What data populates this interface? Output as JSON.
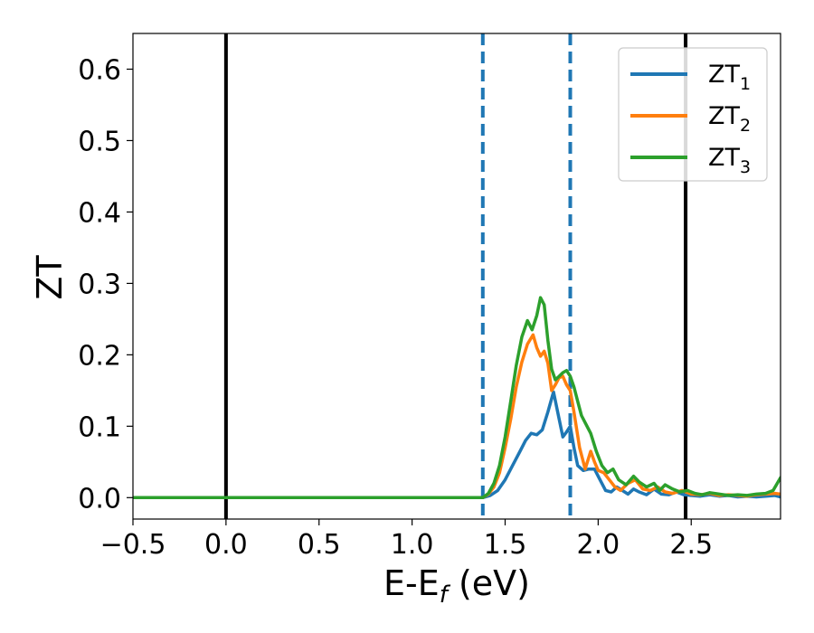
{
  "chart_data": {
    "type": "line",
    "title": "",
    "xlabel": {
      "main": "E-E",
      "sub": "f",
      "suffix": " (eV)"
    },
    "ylabel": "ZT",
    "xlim": [
      -0.5,
      2.98
    ],
    "ylim": [
      -0.03,
      0.65
    ],
    "xticks": [
      -0.5,
      0.0,
      0.5,
      1.0,
      1.5,
      2.0,
      2.5
    ],
    "xtick_labels": [
      "−0.5",
      "0.0",
      "0.5",
      "1.0",
      "1.5",
      "2.0",
      "2.5"
    ],
    "yticks": [
      0.0,
      0.1,
      0.2,
      0.3,
      0.4,
      0.5,
      0.6
    ],
    "ytick_labels": [
      "0.0",
      "0.1",
      "0.2",
      "0.3",
      "0.4",
      "0.5",
      "0.6"
    ],
    "grid": false,
    "legend_position": "top-right",
    "vertical_lines": [
      {
        "x": 0.0,
        "style": "solid",
        "color": "#000000"
      },
      {
        "x": 2.47,
        "style": "solid",
        "color": "#000000"
      },
      {
        "x": 1.38,
        "style": "dashed",
        "color": "#1f77b4"
      },
      {
        "x": 1.85,
        "style": "dashed",
        "color": "#1f77b4"
      }
    ],
    "series": [
      {
        "name": {
          "main": "ZT",
          "sub": "1"
        },
        "color": "#1f77b4",
        "x": [
          -0.5,
          0.0,
          0.5,
          1.0,
          1.3,
          1.38,
          1.42,
          1.46,
          1.5,
          1.54,
          1.58,
          1.61,
          1.64,
          1.67,
          1.7,
          1.73,
          1.76,
          1.79,
          1.81,
          1.83,
          1.85,
          1.87,
          1.89,
          1.92,
          1.95,
          1.98,
          2.01,
          2.04,
          2.07,
          2.1,
          2.13,
          2.16,
          2.19,
          2.22,
          2.26,
          2.3,
          2.34,
          2.38,
          2.42,
          2.46,
          2.5,
          2.55,
          2.6,
          2.65,
          2.7,
          2.75,
          2.8,
          2.85,
          2.9,
          2.95,
          2.98
        ],
        "y": [
          0.0,
          0.0,
          0.0,
          0.0,
          0.0,
          0.0,
          0.003,
          0.01,
          0.025,
          0.045,
          0.065,
          0.08,
          0.09,
          0.088,
          0.095,
          0.12,
          0.148,
          0.11,
          0.085,
          0.092,
          0.1,
          0.07,
          0.045,
          0.038,
          0.04,
          0.04,
          0.025,
          0.01,
          0.008,
          0.015,
          0.01,
          0.005,
          0.012,
          0.008,
          0.004,
          0.012,
          0.005,
          0.004,
          0.008,
          0.004,
          0.003,
          0.002,
          0.004,
          0.002,
          0.003,
          0.001,
          0.002,
          0.001,
          0.002,
          0.003,
          0.001
        ]
      },
      {
        "name": {
          "main": "ZT",
          "sub": "2"
        },
        "color": "#ff7f0e",
        "x": [
          -0.5,
          0.0,
          0.5,
          1.0,
          1.3,
          1.38,
          1.41,
          1.44,
          1.47,
          1.5,
          1.53,
          1.56,
          1.59,
          1.62,
          1.65,
          1.67,
          1.69,
          1.71,
          1.73,
          1.75,
          1.77,
          1.79,
          1.81,
          1.83,
          1.85,
          1.87,
          1.9,
          1.93,
          1.96,
          1.98,
          2.0,
          2.03,
          2.06,
          2.09,
          2.12,
          2.16,
          2.2,
          2.24,
          2.28,
          2.32,
          2.36,
          2.4,
          2.45,
          2.5,
          2.55,
          2.6,
          2.65,
          2.7,
          2.75,
          2.8,
          2.85,
          2.9,
          2.95,
          2.98
        ],
        "y": [
          0.0,
          0.0,
          0.0,
          0.0,
          0.0,
          0.0,
          0.005,
          0.015,
          0.035,
          0.07,
          0.11,
          0.155,
          0.19,
          0.215,
          0.228,
          0.21,
          0.198,
          0.205,
          0.188,
          0.15,
          0.158,
          0.168,
          0.17,
          0.158,
          0.15,
          0.12,
          0.07,
          0.04,
          0.065,
          0.05,
          0.038,
          0.035,
          0.025,
          0.015,
          0.01,
          0.02,
          0.025,
          0.012,
          0.01,
          0.015,
          0.008,
          0.006,
          0.01,
          0.005,
          0.004,
          0.006,
          0.003,
          0.004,
          0.003,
          0.002,
          0.004,
          0.005,
          0.006,
          0.005
        ]
      },
      {
        "name": {
          "main": "ZT",
          "sub": "3"
        },
        "color": "#2ca02c",
        "x": [
          -0.5,
          0.0,
          0.5,
          1.0,
          1.3,
          1.38,
          1.41,
          1.44,
          1.47,
          1.5,
          1.53,
          1.56,
          1.59,
          1.62,
          1.645,
          1.67,
          1.69,
          1.71,
          1.73,
          1.75,
          1.77,
          1.79,
          1.81,
          1.83,
          1.85,
          1.87,
          1.89,
          1.91,
          1.93,
          1.96,
          1.99,
          2.02,
          2.05,
          2.08,
          2.11,
          2.15,
          2.19,
          2.22,
          2.26,
          2.3,
          2.33,
          2.36,
          2.4,
          2.44,
          2.48,
          2.52,
          2.56,
          2.6,
          2.65,
          2.7,
          2.75,
          2.8,
          2.85,
          2.9,
          2.94,
          2.98
        ],
        "y": [
          0.0,
          0.0,
          0.0,
          0.0,
          0.0,
          0.0,
          0.006,
          0.02,
          0.045,
          0.085,
          0.135,
          0.185,
          0.225,
          0.248,
          0.235,
          0.255,
          0.28,
          0.27,
          0.22,
          0.18,
          0.165,
          0.17,
          0.175,
          0.178,
          0.17,
          0.155,
          0.135,
          0.115,
          0.105,
          0.09,
          0.065,
          0.045,
          0.035,
          0.04,
          0.025,
          0.018,
          0.03,
          0.022,
          0.015,
          0.02,
          0.01,
          0.018,
          0.012,
          0.008,
          0.01,
          0.006,
          0.004,
          0.007,
          0.005,
          0.003,
          0.004,
          0.003,
          0.005,
          0.006,
          0.01,
          0.028
        ]
      }
    ]
  }
}
